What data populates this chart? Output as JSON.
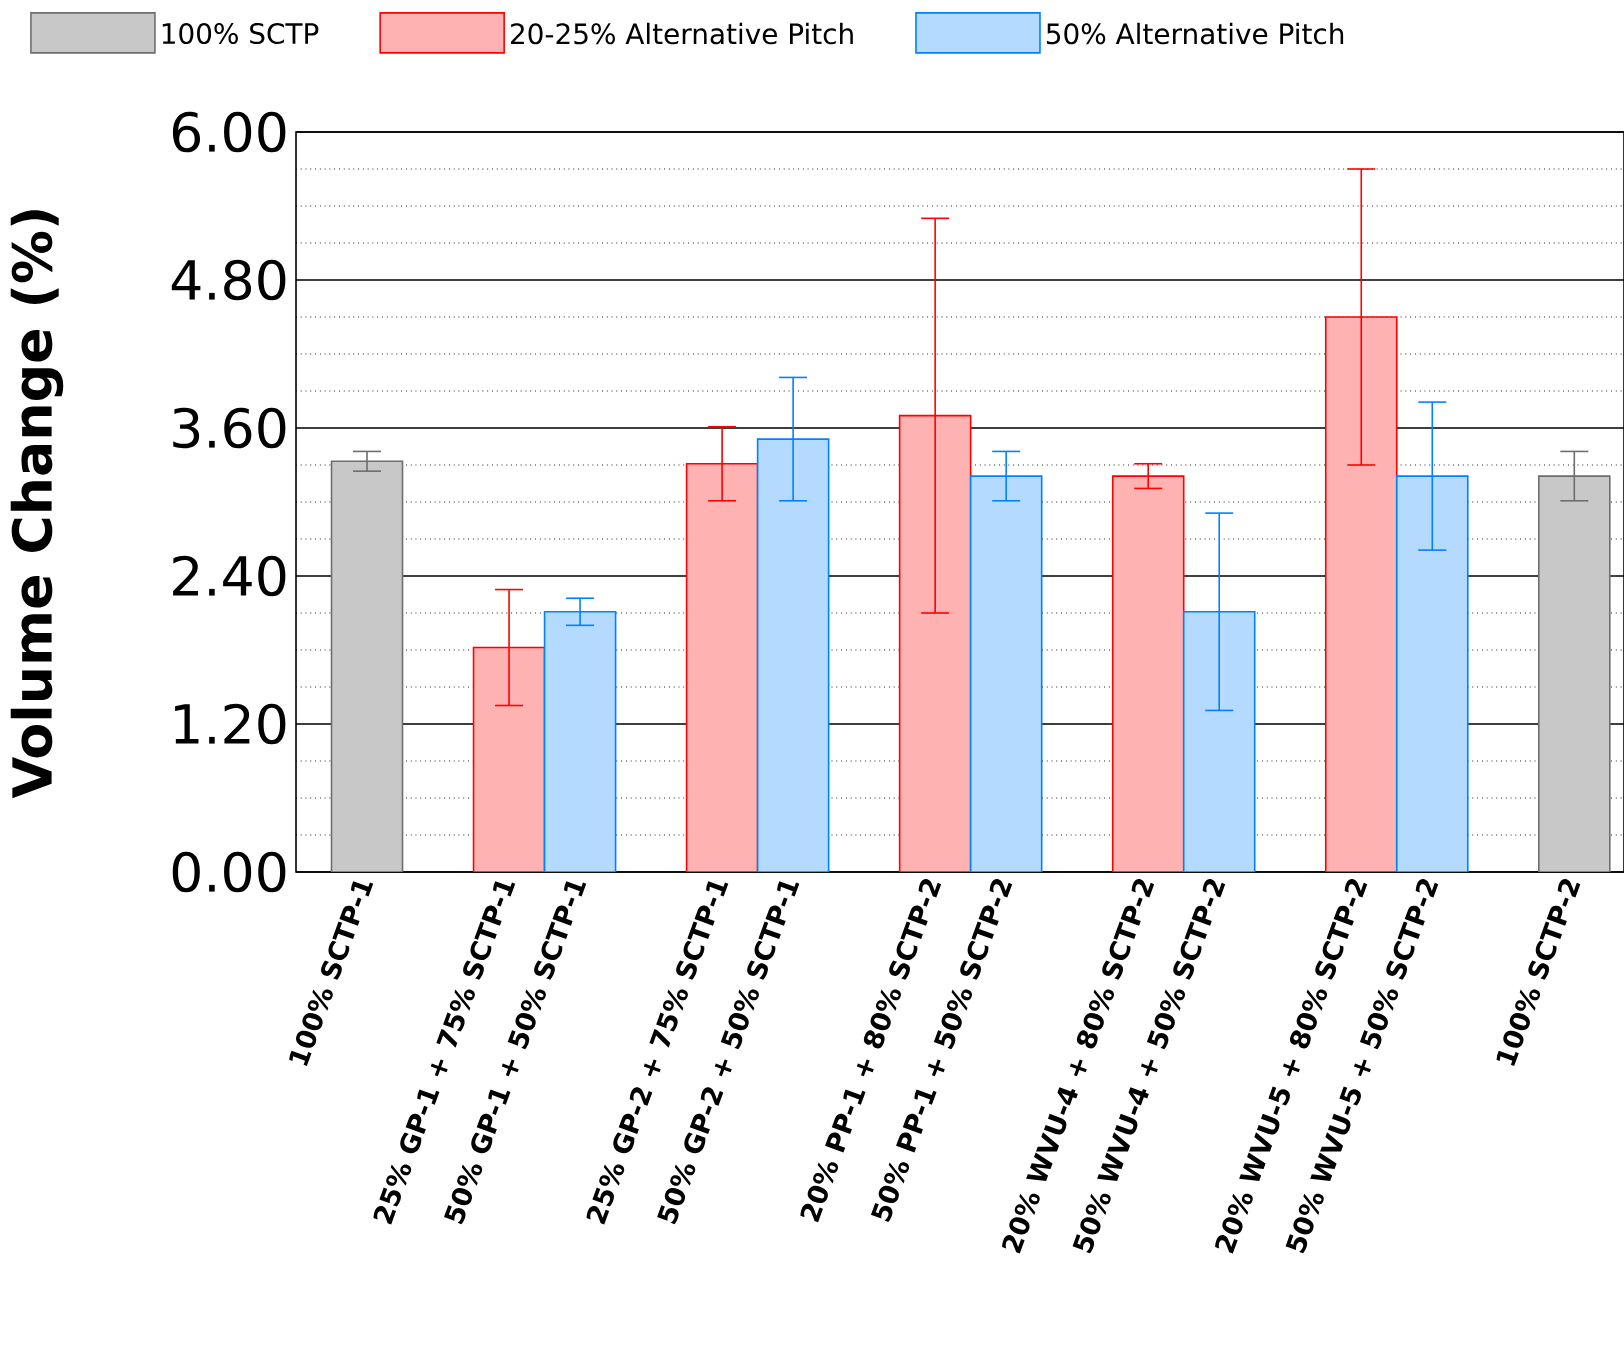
{
  "chart_data": {
    "type": "bar",
    "ylabel": "Volume Change (%)",
    "categories": [
      "100% SCTP-1",
      "25% GP-1 + 75% SCTP-1",
      "50% GP-1 + 50% SCTP-1",
      "25% GP-2 + 75% SCTP-1",
      "50% GP-2 + 50% SCTP-1",
      "20% PP-1 + 80% SCTP-2",
      "50% PP-1 + 50% SCTP-2",
      "20% WVU-4 + 80% SCTP-2",
      "50% WVU-4 + 50% SCTP-2",
      "20% WVU-5 + 80% SCTP-2",
      "50% WVU-5 + 50% SCTP-2",
      "100% SCTP-2"
    ],
    "series": [
      {
        "name": "100% SCTP",
        "color": "#c8c8c8",
        "values": [
          3.33,
          null,
          null,
          null,
          null,
          null,
          null,
          null,
          null,
          null,
          null,
          3.21
        ],
        "errors": [
          0.08,
          null,
          null,
          null,
          null,
          null,
          null,
          null,
          null,
          null,
          null,
          0.2
        ]
      },
      {
        "name": "20-25% Alternative Pitch",
        "color": "#ffb2b2",
        "values": [
          null,
          1.82,
          null,
          3.31,
          null,
          3.7,
          null,
          3.21,
          null,
          4.5,
          null,
          null
        ],
        "errors": [
          null,
          0.47,
          null,
          0.3,
          null,
          1.6,
          null,
          0.1,
          null,
          1.2,
          null,
          null
        ]
      },
      {
        "name": "50% Alternative Pitch",
        "color": "#b4daff",
        "values": [
          null,
          null,
          2.11,
          null,
          3.51,
          null,
          3.21,
          null,
          2.11,
          null,
          3.21,
          null
        ],
        "errors": [
          null,
          null,
          0.11,
          null,
          0.5,
          null,
          0.2,
          null,
          0.8,
          null,
          0.6,
          null
        ]
      }
    ],
    "ylim": [
      0,
      6
    ],
    "yticks": [
      {
        "value": 0,
        "label": "0.00"
      },
      {
        "value": 1.2,
        "label": "1.20"
      },
      {
        "value": 2.4,
        "label": "2.40"
      },
      {
        "value": 3.6,
        "label": "3.60"
      },
      {
        "value": 4.8,
        "label": "4.80"
      },
      {
        "value": 6,
        "label": "6.00"
      }
    ],
    "grid": "y",
    "legend": "top"
  }
}
